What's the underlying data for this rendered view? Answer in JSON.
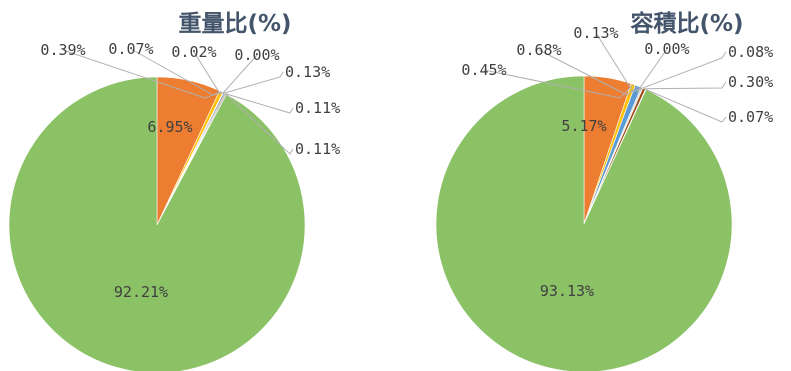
{
  "chart_data": [
    {
      "type": "pie",
      "title": "重量比(%)",
      "slices": [
        {
          "value": 6.95,
          "label": "6.95%",
          "color": "#ed7d31"
        },
        {
          "value": 0.39,
          "label": "0.39%",
          "color": "#ffc000"
        },
        {
          "value": 0.07,
          "label": "0.07%",
          "color": "#5b9bd5"
        },
        {
          "value": 0.02,
          "label": "0.02%",
          "color": "#a5a5a5"
        },
        {
          "value": 0.0,
          "label": "0.00%",
          "color": "#4472c4"
        },
        {
          "value": 0.13,
          "label": "0.13%",
          "color": "#264478"
        },
        {
          "value": 0.11,
          "label": "0.11%",
          "color": "#9e480e"
        },
        {
          "value": 0.11,
          "label": "0.11%",
          "color": "#636363"
        },
        {
          "value": 92.21,
          "label": "92.21%",
          "color": "#8bc266"
        }
      ]
    },
    {
      "type": "pie",
      "title": "容積比(%)",
      "slices": [
        {
          "value": 5.17,
          "label": "5.17%",
          "color": "#ed7d31"
        },
        {
          "value": 0.45,
          "label": "0.45%",
          "color": "#ffc000"
        },
        {
          "value": 0.68,
          "label": "0.68%",
          "color": "#5b9bd5"
        },
        {
          "value": 0.13,
          "label": "0.13%",
          "color": "#a5a5a5"
        },
        {
          "value": 0.0,
          "label": "0.00%",
          "color": "#4472c4"
        },
        {
          "value": 0.08,
          "label": "0.08%",
          "color": "#264478"
        },
        {
          "value": 0.3,
          "label": "0.30%",
          "color": "#9e480e"
        },
        {
          "value": 0.07,
          "label": "0.07%",
          "color": "#636363"
        },
        {
          "value": 93.13,
          "label": "93.13%",
          "color": "#8bc266"
        }
      ]
    }
  ]
}
